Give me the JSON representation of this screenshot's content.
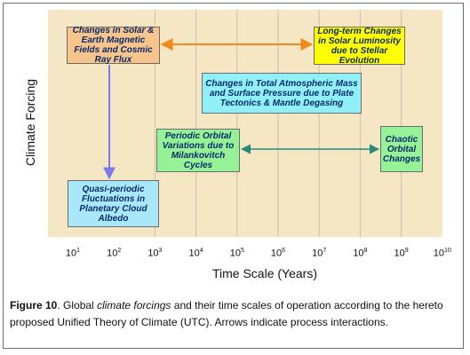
{
  "diagram": {
    "y_axis_label": "Climate Forcing",
    "x_axis_label": "Time Scale (Years)",
    "x_ticks": [
      {
        "base": "10",
        "exp": "1"
      },
      {
        "base": "10",
        "exp": "2"
      },
      {
        "base": "10",
        "exp": "3"
      },
      {
        "base": "10",
        "exp": "4"
      },
      {
        "base": "10",
        "exp": "5"
      },
      {
        "base": "10",
        "exp": "6"
      },
      {
        "base": "10",
        "exp": "7"
      },
      {
        "base": "10",
        "exp": "8"
      },
      {
        "base": "10",
        "exp": "9"
      },
      {
        "base": "10",
        "exp": "10"
      }
    ],
    "nodes": {
      "solar": "Changes in Solar & Earth Magnetic Fields and Cosmic Ray Flux",
      "luminosity": "Long-term Changes in Solar Luminosity due to Stellar Evolution",
      "atmospheric": "Changes in Total Atmospheric Mass and Surface Pressure due to Plate Tectonics & Mantle Degasing",
      "orbital": "Periodic Orbital Variations due to Milankovitch Cycles",
      "chaotic": "Chaotic Orbital Changes",
      "quasi": "Quasi-periodic Fluctuations in Planetary Cloud Albedo"
    },
    "colors": {
      "plot_background": "#f5e7c3",
      "solar_box": "#f7c48c",
      "luminosity_box": "#ffff00",
      "atmospheric_box": "#8ff0f7",
      "orbital_box": "#96f296",
      "quasi_box": "#a8e8fa",
      "orange_arrow": "#f08a1a",
      "blue_arrow": "#7a7aee",
      "teal_arrow": "#2a8a7a"
    }
  },
  "caption": {
    "label": "Figure 10",
    "text_1": ". Global ",
    "emphasis": "climate forcings",
    "text_2": " and their time scales of operation according to the hereto proposed Unified Theory of Climate (UTC). Arrows indicate process interactions."
  }
}
